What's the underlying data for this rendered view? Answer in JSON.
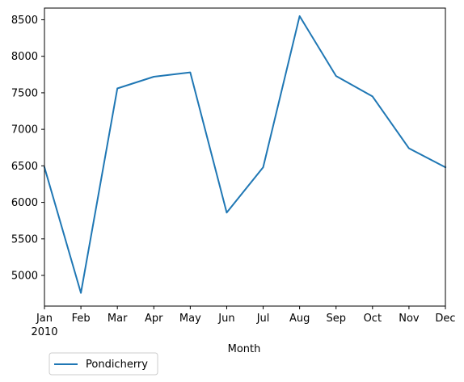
{
  "chart_data": {
    "type": "line",
    "title": "",
    "xlabel": "Month",
    "ylabel": "",
    "x": [
      "Jan",
      "Feb",
      "Mar",
      "Apr",
      "May",
      "Jun",
      "Jul",
      "Aug",
      "Sep",
      "Oct",
      "Nov",
      "Dec"
    ],
    "x_year_label": "2010",
    "ylim": [
      4580,
      8660
    ],
    "yticks": [
      5000,
      5500,
      6000,
      6500,
      7000,
      7500,
      8000,
      8500
    ],
    "grid": false,
    "legend_position": "bottom-left, below axes",
    "series": [
      {
        "name": "Pondicherry",
        "color": "#1f77b4",
        "values": [
          6480,
          4760,
          7560,
          7720,
          7780,
          5860,
          6480,
          8550,
          7730,
          7450,
          6740,
          6480
        ]
      }
    ]
  }
}
